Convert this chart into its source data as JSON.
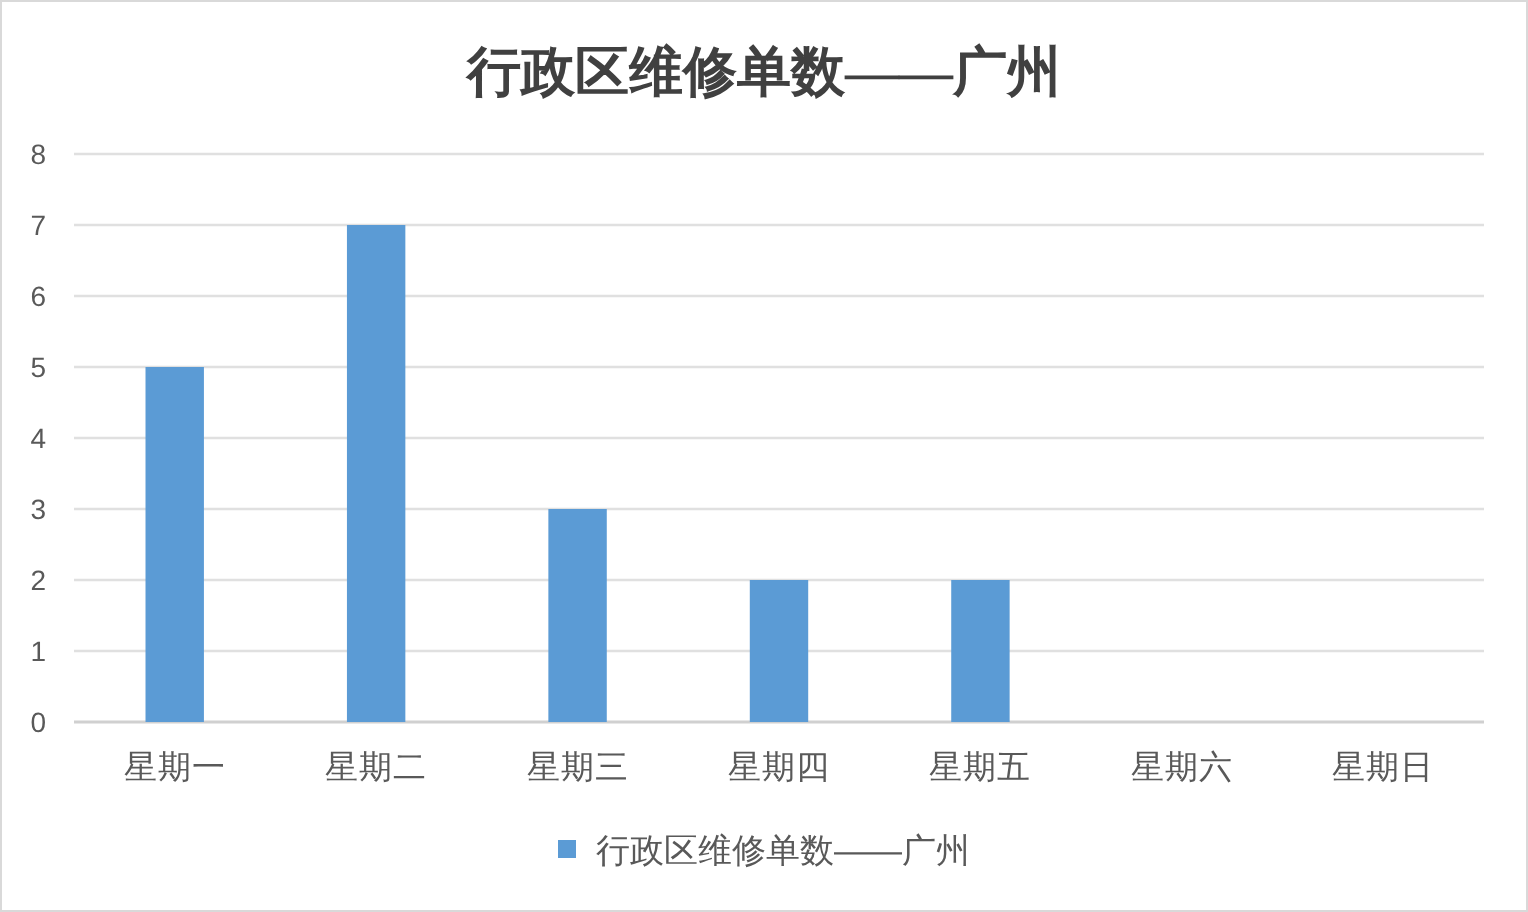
{
  "chart_data": {
    "type": "bar",
    "title": "行政区维修单数——广州",
    "categories": [
      "星期一",
      "星期二",
      "星期三",
      "星期四",
      "星期五",
      "星期六",
      "星期日"
    ],
    "series": [
      {
        "name": "行政区维修单数——广州",
        "color": "#5b9bd5",
        "values": [
          5,
          7,
          3,
          2,
          2,
          0,
          0
        ]
      }
    ],
    "ylim": [
      0,
      8
    ],
    "yticks": [
      0,
      1,
      2,
      3,
      4,
      5,
      6,
      7,
      8
    ],
    "grid": "y",
    "legend": "bottom"
  }
}
